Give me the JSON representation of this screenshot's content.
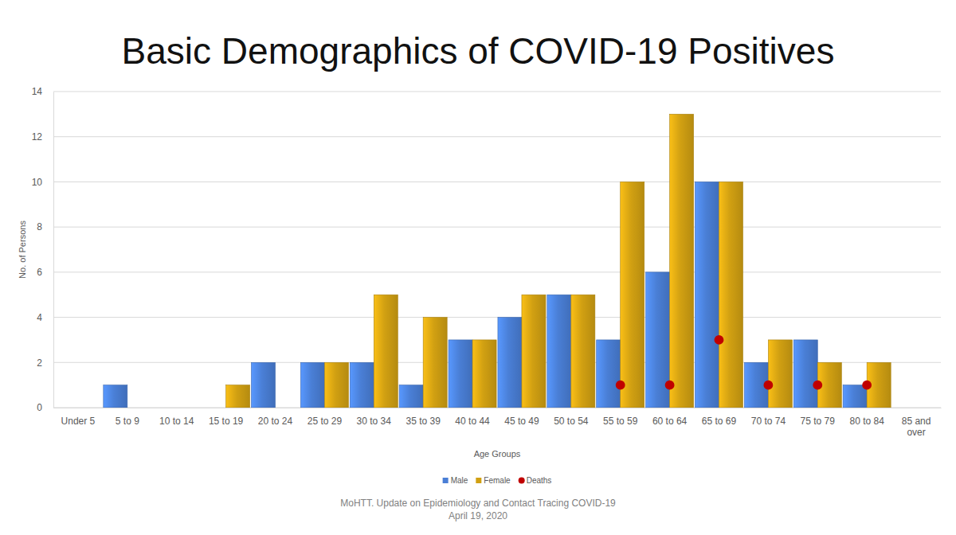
{
  "chart_data": {
    "type": "bar",
    "title": "Basic Demographics of COVID-19 Positives",
    "xlabel": "Age Groups",
    "ylabel": "No. of Persons",
    "categories": [
      "Under 5",
      "5 to 9",
      "10 to 14",
      "15 to 19",
      "20 to 24",
      "25 to 29",
      "30 to 34",
      "35 to 39",
      "40 to 44",
      "45 to 49",
      "50 to 54",
      "55 to 59",
      "60 to 64",
      "65 to 69",
      "70 to 74",
      "75 to 79",
      "80 to 84",
      "85 and over"
    ],
    "series": [
      {
        "name": "Male",
        "color": "#4a7fd6",
        "values": [
          0,
          1,
          0,
          0,
          2,
          2,
          2,
          1,
          3,
          4,
          5,
          3,
          6,
          10,
          2,
          3,
          1,
          0
        ]
      },
      {
        "name": "Female",
        "color": "#d1a012",
        "values": [
          0,
          0,
          0,
          1,
          0,
          2,
          5,
          4,
          3,
          5,
          5,
          10,
          13,
          10,
          3,
          2,
          2,
          0
        ]
      },
      {
        "name": "Deaths",
        "type": "scatter",
        "marker": "circle",
        "color": "#c00000",
        "values": [
          null,
          null,
          null,
          null,
          null,
          null,
          null,
          null,
          null,
          null,
          null,
          1,
          1,
          3,
          1,
          1,
          1,
          null
        ]
      }
    ],
    "ylim": [
      0,
      14
    ],
    "yticks": [
      0,
      2,
      4,
      6,
      8,
      10,
      12,
      14
    ],
    "grid": true,
    "legend": "bottom",
    "annotations": [
      "MoHTT. Update on Epidemiology and Contact Tracing COVID-19",
      "April 19, 2020"
    ]
  }
}
